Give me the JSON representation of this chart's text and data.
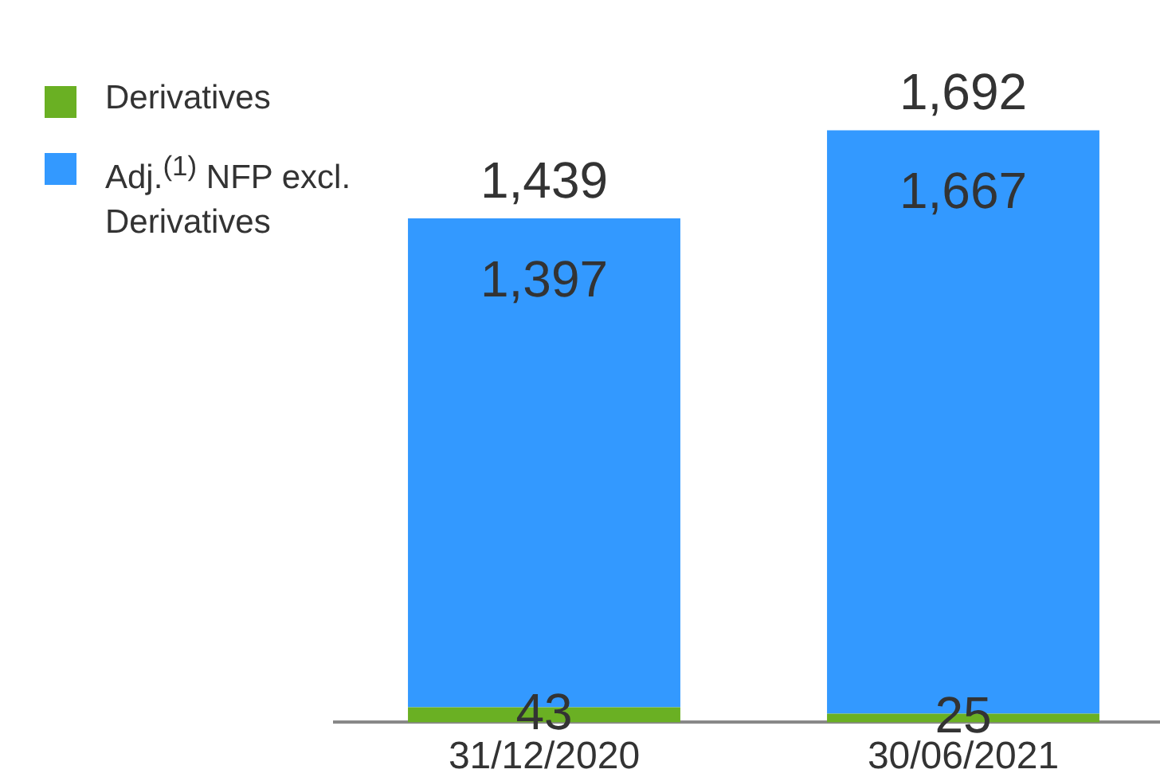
{
  "chart_data": {
    "type": "bar",
    "stacked": true,
    "categories": [
      "31/12/2020",
      "30/06/2021"
    ],
    "series": [
      {
        "name": "Derivatives",
        "color": "#6ab023",
        "values": [
          43,
          25
        ],
        "value_labels": [
          "43",
          "25"
        ]
      },
      {
        "name": "Adj.$^{(1)}$ NFP excl. Derivatives",
        "color": "#3399ff",
        "values": [
          1397,
          1667
        ],
        "value_labels": [
          "1,397",
          "1,667"
        ]
      }
    ],
    "totals": [
      "1,439",
      "1,692"
    ],
    "legend": "top left",
    "grid": false,
    "tick_labels": "x"
  }
}
